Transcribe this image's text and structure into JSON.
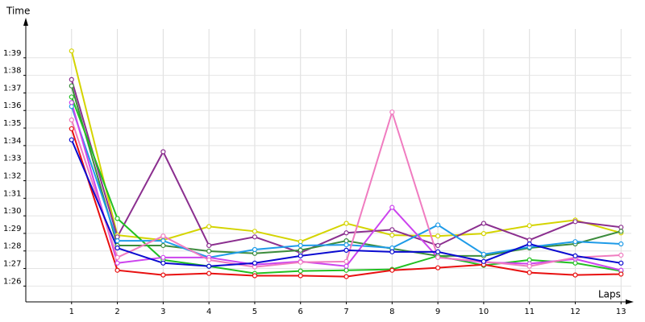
{
  "chart_data": {
    "type": "line",
    "y_label": "Time",
    "x_label": "Laps",
    "x": [
      1,
      2,
      3,
      4,
      5,
      6,
      7,
      8,
      9,
      10,
      11,
      12,
      13
    ],
    "xlim": [
      0,
      13.4
    ],
    "xticks": [
      1,
      2,
      3,
      4,
      5,
      6,
      7,
      8,
      9,
      10,
      11,
      12,
      13
    ],
    "ylim": [
      85.1,
      101.1
    ],
    "yticks": [
      {
        "value": 86,
        "label": "1:26"
      },
      {
        "value": 87,
        "label": "1:27"
      },
      {
        "value": 88,
        "label": "1:28"
      },
      {
        "value": 89,
        "label": "1:29"
      },
      {
        "value": 90,
        "label": "1:30"
      },
      {
        "value": 91,
        "label": "1:31"
      },
      {
        "value": 92,
        "label": "1:32"
      },
      {
        "value": 93,
        "label": "1:33"
      },
      {
        "value": 94,
        "label": "1:34"
      },
      {
        "value": 95,
        "label": "1:35"
      },
      {
        "value": 96,
        "label": "1:36"
      },
      {
        "value": 97,
        "label": "1:37"
      },
      {
        "value": 98,
        "label": "1:38"
      },
      {
        "value": 99,
        "label": "1:39"
      }
    ],
    "grid": true,
    "series": [
      {
        "color": "#d4d400",
        "values": [
          99.39,
          88.9,
          88.62,
          89.39,
          89.12,
          88.53,
          89.57,
          88.9,
          88.85,
          88.99,
          89.44,
          89.76,
          89.03
        ]
      },
      {
        "color": "#8b2f8f",
        "values": [
          97.76,
          88.8,
          93.65,
          88.31,
          88.8,
          87.9,
          89.03,
          89.21,
          88.31,
          89.57,
          88.62,
          89.67,
          89.35
        ]
      },
      {
        "color": "#3c8c3c",
        "values": [
          97.4,
          88.31,
          88.31,
          87.99,
          87.86,
          88.04,
          88.58,
          88.13,
          87.72,
          87.72,
          88.17,
          88.4,
          89.12
        ]
      },
      {
        "color": "#22c022",
        "values": [
          96.77,
          89.85,
          87.49,
          87.13,
          86.72,
          86.86,
          86.9,
          86.95,
          87.72,
          87.18,
          87.49,
          87.31,
          86.86
        ]
      },
      {
        "color": "#1e9be8",
        "values": [
          96.23,
          88.58,
          88.58,
          87.63,
          88.08,
          88.31,
          88.35,
          88.17,
          89.48,
          87.81,
          88.22,
          88.53,
          88.4
        ]
      },
      {
        "color": "#cc44ee",
        "values": [
          96.45,
          87.31,
          87.63,
          87.63,
          87.22,
          87.4,
          87.13,
          90.48,
          87.63,
          87.36,
          87.27,
          87.54,
          86.9
        ]
      },
      {
        "color": "#f07cc0",
        "values": [
          95.46,
          87.63,
          88.85,
          87.49,
          87.09,
          87.36,
          87.4,
          95.91,
          87.63,
          87.4,
          87.13,
          87.63,
          87.76
        ]
      },
      {
        "color": "#e81010",
        "values": [
          94.96,
          86.9,
          86.63,
          86.72,
          86.59,
          86.59,
          86.54,
          86.9,
          87.04,
          87.22,
          86.77,
          86.63,
          86.68
        ]
      },
      {
        "color": "#0a0ad0",
        "values": [
          94.33,
          88.17,
          87.31,
          87.13,
          87.31,
          87.72,
          88.04,
          87.95,
          87.95,
          87.4,
          88.4,
          87.72,
          87.31
        ]
      }
    ]
  }
}
